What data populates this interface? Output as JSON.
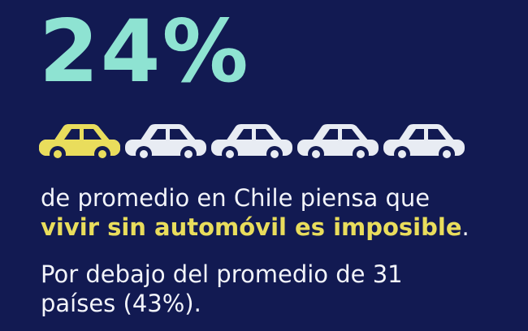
{
  "stat": {
    "value": 24,
    "label": "24%"
  },
  "line_1": "de promedio en Chile piensa que",
  "highlight": "vivir sin automóvil es imposible",
  "highlight_end": ".",
  "note": "Por debajo del promedio de 31 países (43%)."
}
